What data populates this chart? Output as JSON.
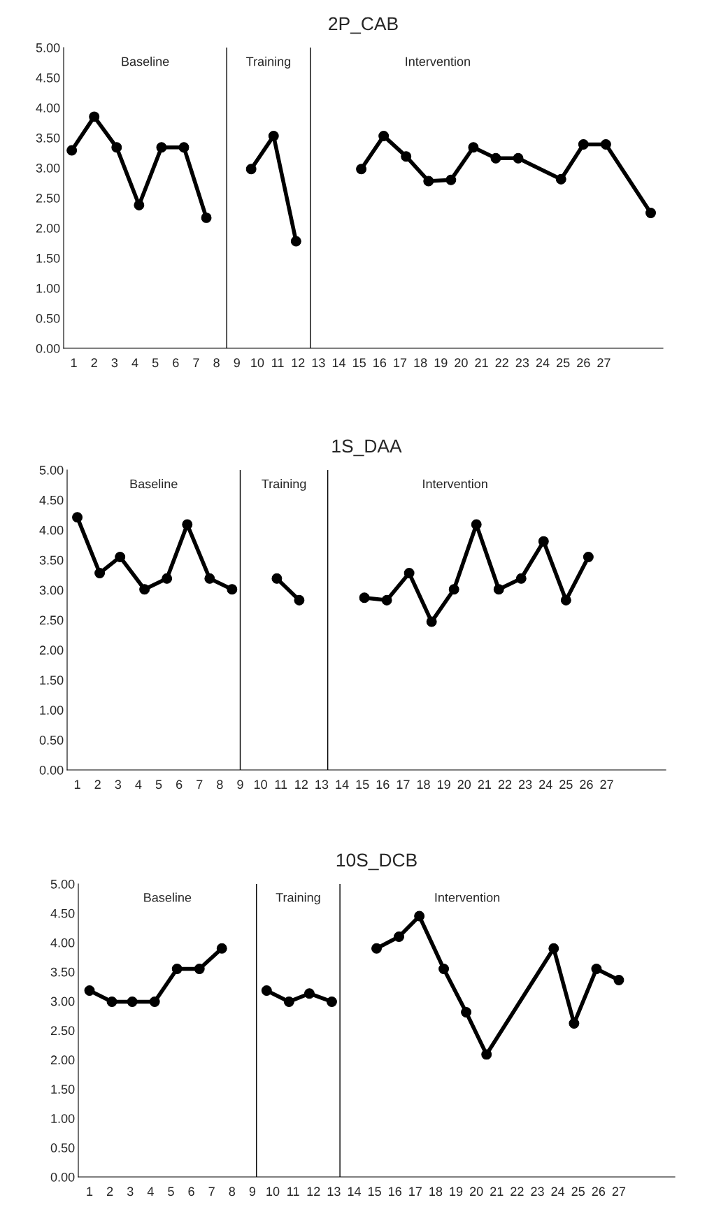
{
  "chart_data": [
    {
      "type": "line",
      "title": "2P_CAB",
      "marker": "circle",
      "line_style": "solid",
      "grid": false,
      "legend": false,
      "xlim": [
        0.5,
        29.9
      ],
      "xticks": [
        1,
        2,
        3,
        4,
        5,
        6,
        7,
        8,
        9,
        10,
        11,
        12,
        13,
        14,
        15,
        16,
        17,
        18,
        19,
        20,
        21,
        22,
        23,
        24,
        25,
        26,
        27
      ],
      "ylim": [
        0,
        5
      ],
      "yticks": [
        {
          "value": 0,
          "label": "0.00"
        },
        {
          "value": 0.5,
          "label": "0.50"
        },
        {
          "value": 1,
          "label": "1.00"
        },
        {
          "value": 1.5,
          "label": "1.50"
        },
        {
          "value": 2,
          "label": "2.00"
        },
        {
          "value": 2.5,
          "label": "2.50"
        },
        {
          "value": 3,
          "label": "3.00"
        },
        {
          "value": 3.5,
          "label": "3.50"
        },
        {
          "value": 4,
          "label": "4.00"
        },
        {
          "value": 4.5,
          "label": "4.50"
        },
        {
          "value": 5,
          "label": "5.00"
        }
      ],
      "series": [
        {
          "color": "#000000",
          "x": [
            0.9,
            2.0,
            3.1,
            4.2,
            5.3,
            6.4,
            7.5
          ],
          "values": [
            3.29,
            3.85,
            3.34,
            2.38,
            3.34,
            3.34,
            2.17
          ]
        },
        {
          "color": "#000000",
          "x": [
            9.7,
            10.8,
            11.9
          ],
          "values": [
            2.98,
            3.53,
            1.78
          ]
        },
        {
          "color": "#000000",
          "x": [
            15.1,
            16.2,
            17.3,
            18.4,
            19.5,
            20.6,
            21.7,
            22.8,
            24.9,
            26.0,
            27.1,
            29.3
          ],
          "values": [
            2.98,
            3.53,
            3.19,
            2.78,
            2.8,
            3.34,
            3.16,
            3.16,
            2.81,
            3.39,
            3.39,
            2.25
          ]
        }
      ],
      "ref_lines": [
        {
          "axis": "x",
          "value": 8.5,
          "color": "#000000"
        },
        {
          "axis": "x",
          "value": 12.6,
          "color": "#000000"
        }
      ],
      "annotations": [
        "Baseline",
        "Training",
        "Intervention"
      ]
    },
    {
      "type": "line",
      "title": "1S_DAA",
      "marker": "circle",
      "line_style": "solid",
      "grid": false,
      "legend": false,
      "xlim": [
        0.5,
        29.9
      ],
      "xticks": [
        1,
        2,
        3,
        4,
        5,
        6,
        7,
        8,
        9,
        10,
        11,
        12,
        13,
        14,
        15,
        16,
        17,
        18,
        19,
        20,
        21,
        22,
        23,
        24,
        25,
        26,
        27
      ],
      "ylim": [
        0,
        5
      ],
      "yticks": [
        {
          "value": 0,
          "label": "0.00"
        },
        {
          "value": 0.5,
          "label": "0.50"
        },
        {
          "value": 1,
          "label": "1.00"
        },
        {
          "value": 1.5,
          "label": "1.50"
        },
        {
          "value": 2,
          "label": "2.00"
        },
        {
          "value": 2.5,
          "label": "2.50"
        },
        {
          "value": 3,
          "label": "3.00"
        },
        {
          "value": 3.5,
          "label": "3.50"
        },
        {
          "value": 4,
          "label": "4.00"
        },
        {
          "value": 4.5,
          "label": "4.50"
        },
        {
          "value": 5,
          "label": "5.00"
        }
      ],
      "series": [
        {
          "color": "#000000",
          "x": [
            1.0,
            2.1,
            3.1,
            4.3,
            5.4,
            6.4,
            7.5,
            8.6
          ],
          "values": [
            4.21,
            3.28,
            3.55,
            3.01,
            3.19,
            4.09,
            3.19,
            3.01
          ]
        },
        {
          "color": "#000000",
          "x": [
            10.8,
            11.9
          ],
          "values": [
            3.19,
            2.83
          ]
        },
        {
          "color": "#000000",
          "x": [
            15.1,
            16.2,
            17.3,
            18.4,
            19.5,
            20.6,
            21.7,
            22.8,
            23.9,
            25.0,
            26.1
          ],
          "values": [
            2.87,
            2.83,
            3.28,
            2.47,
            3.01,
            4.09,
            3.01,
            3.19,
            3.81,
            2.83,
            3.55
          ]
        }
      ],
      "ref_lines": [
        {
          "axis": "x",
          "value": 9.0,
          "color": "#000000"
        },
        {
          "axis": "x",
          "value": 13.3,
          "color": "#000000"
        }
      ],
      "annotations": [
        "Baseline",
        "Training",
        "Intervention"
      ]
    },
    {
      "type": "line",
      "title": "10S_DCB",
      "marker": "circle",
      "line_style": "solid",
      "grid": false,
      "legend": false,
      "xlim": [
        0.45,
        29.75
      ],
      "xticks": [
        1,
        2,
        3,
        4,
        5,
        6,
        7,
        8,
        9,
        10,
        11,
        12,
        13,
        14,
        15,
        16,
        17,
        18,
        19,
        20,
        21,
        22,
        23,
        24,
        25,
        26,
        27
      ],
      "ylim": [
        0,
        5
      ],
      "yticks": [
        {
          "value": 0,
          "label": "0.00"
        },
        {
          "value": 0.5,
          "label": "0.50"
        },
        {
          "value": 1,
          "label": "1.00"
        },
        {
          "value": 1.5,
          "label": "1.50"
        },
        {
          "value": 2,
          "label": "2.00"
        },
        {
          "value": 2.5,
          "label": "2.50"
        },
        {
          "value": 3,
          "label": "3.00"
        },
        {
          "value": 3.5,
          "label": "3.50"
        },
        {
          "value": 4,
          "label": "4.00"
        },
        {
          "value": 4.5,
          "label": "4.50"
        },
        {
          "value": 5,
          "label": "5.00"
        }
      ],
      "series": [
        {
          "color": "#000000",
          "x": [
            1.0,
            2.1,
            3.1,
            4.2,
            5.3,
            6.4,
            7.5
          ],
          "values": [
            3.18,
            2.99,
            2.99,
            2.99,
            3.55,
            3.55,
            3.9
          ]
        },
        {
          "color": "#000000",
          "x": [
            9.7,
            10.8,
            11.8,
            12.9
          ],
          "values": [
            3.18,
            2.99,
            3.13,
            2.99
          ]
        },
        {
          "color": "#000000",
          "x": [
            15.1,
            16.2,
            17.2,
            18.4,
            19.5,
            20.5,
            23.8,
            24.8,
            25.9,
            27.0
          ],
          "values": [
            3.9,
            4.1,
            4.45,
            3.55,
            2.81,
            2.09,
            3.9,
            2.62,
            3.55,
            3.36
          ]
        }
      ],
      "ref_lines": [
        {
          "axis": "x",
          "value": 9.2,
          "color": "#000000"
        },
        {
          "axis": "x",
          "value": 13.3,
          "color": "#000000"
        }
      ],
      "annotations": [
        "Baseline",
        "Training",
        "Intervention"
      ]
    }
  ]
}
